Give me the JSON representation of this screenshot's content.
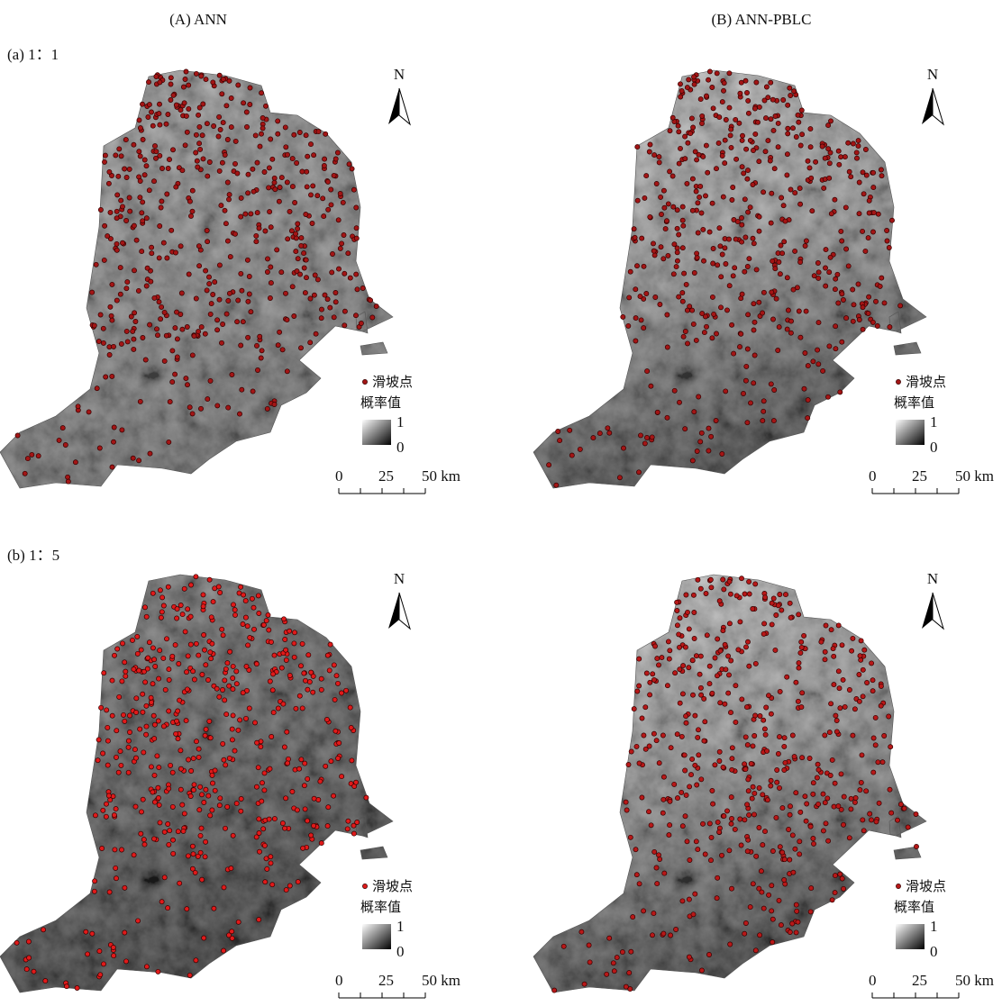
{
  "columns": [
    "(A) ANN",
    "(B)  ANN-PBLC"
  ],
  "rows": [
    "(a) 1：1",
    "(b) 1：5"
  ],
  "panels": [
    {
      "north": "N",
      "legend_point": "滑坡点",
      "legend_title": "概率值",
      "legend_max": "1",
      "legend_min": "0",
      "scale": [
        "0",
        "25",
        "50 km"
      ]
    },
    {
      "north": "N",
      "legend_point": "滑坡点",
      "legend_title": "概率值",
      "legend_max": "1",
      "legend_min": "0",
      "scale": [
        "0",
        "25",
        "50 km"
      ]
    },
    {
      "north": "N",
      "legend_point": "滑坡点",
      "legend_title": "概率值",
      "legend_max": "1",
      "legend_min": "0",
      "scale": [
        "0",
        "25",
        "50 km"
      ]
    },
    {
      "north": "N",
      "legend_point": "滑坡点",
      "legend_title": "概率值",
      "legend_max": "1",
      "legend_min": "0",
      "scale": [
        "0",
        "25",
        "50 km"
      ]
    }
  ]
}
